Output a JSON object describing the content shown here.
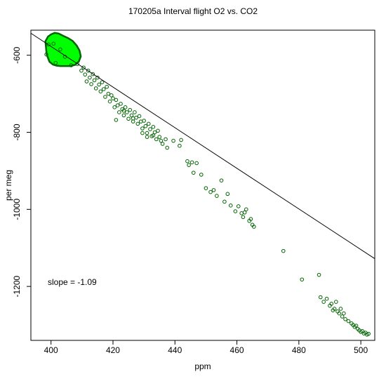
{
  "chart_data": {
    "type": "scatter",
    "title": "170205a   Interval flight O2 vs. CO2",
    "xlabel": "ppm",
    "ylabel": "per meg",
    "xlim": [
      393.5,
      504.5
    ],
    "ylim": [
      -1340,
      -535
    ],
    "xticks": [
      400,
      420,
      440,
      460,
      480,
      500
    ],
    "yticks": [
      -600,
      -800,
      -1000,
      -1200
    ],
    "grid": false,
    "point_color": "#006400",
    "dense_fill_color": "#00ff00",
    "annotation": "slope =  -1.09",
    "fit_line": {
      "x": [
        393.5,
        504.5
      ],
      "y": [
        -543,
        -1128
      ]
    },
    "dense_cluster": {
      "x": [
        398.2,
        399.0,
        400.0,
        401.2,
        402.5,
        404.0,
        405.6,
        407.0,
        408.3,
        409.2,
        409.6,
        409.0,
        407.8,
        406.2,
        404.6,
        403.0,
        401.8,
        400.6,
        399.5,
        398.6
      ],
      "y": [
        -564,
        -552,
        -546,
        -542,
        -544,
        -550,
        -556,
        -563,
        -575,
        -588,
        -603,
        -616,
        -625,
        -628,
        -628,
        -628,
        -627,
        -624,
        -617,
        -598
      ]
    },
    "points": {
      "x": [
        398.5,
        399.2,
        400.8,
        401.5,
        403.0,
        404.5,
        406.5,
        408.5,
        409.8,
        410.5,
        411.0,
        411.5,
        412.0,
        412.5,
        413.0,
        413.5,
        414.0,
        414.5,
        415.0,
        415.5,
        416.0,
        416.5,
        417.0,
        417.5,
        418.0,
        418.5,
        419.0,
        419.5,
        420.0,
        420.5,
        421.0,
        421.5,
        422.0,
        422.5,
        423.0,
        423.5,
        424.0,
        424.5,
        425.0,
        425.5,
        426.0,
        426.5,
        427.0,
        427.5,
        428.0,
        428.5,
        429.0,
        429.5,
        430.0,
        430.5,
        431.0,
        431.5,
        432.0,
        432.5,
        433.0,
        433.5,
        434.0,
        434.5,
        435.0,
        436.0,
        437.0,
        439.5,
        441.5,
        442.0,
        444.0,
        444.5,
        445.5,
        446.0,
        447.0,
        448.5,
        450.0,
        451.5,
        452.5,
        453.5,
        455.0,
        456.0,
        457.0,
        458.0,
        459.5,
        460.5,
        461.5,
        462.0,
        462.5,
        463.0,
        464.0,
        464.5,
        465.0,
        465.5,
        475.0,
        481.0,
        486.5,
        487.0,
        488.0,
        489.0,
        490.0,
        490.5,
        491.0,
        491.5,
        492.0,
        492.5,
        493.0,
        493.5,
        494.0,
        494.5,
        495.0,
        496.0,
        497.0,
        497.5,
        498.0,
        498.5,
        499.0,
        499.5,
        500.0,
        500.5,
        501.0,
        501.5,
        502.0,
        502.5,
        421.0,
        423.5,
        426.5,
        429.5,
        431.0,
        433.0,
        435.5,
        437.5
      ],
      "y": [
        -598,
        -572,
        -570,
        -620,
        -585,
        -604,
        -626,
        -623,
        -640,
        -632,
        -650,
        -668,
        -640,
        -658,
        -675,
        -649,
        -665,
        -686,
        -658,
        -676,
        -694,
        -670,
        -688,
        -708,
        -682,
        -700,
        -720,
        -704,
        -712,
        -735,
        -716,
        -730,
        -748,
        -726,
        -740,
        -756,
        -735,
        -748,
        -765,
        -742,
        -756,
        -772,
        -748,
        -762,
        -778,
        -758,
        -772,
        -790,
        -770,
        -784,
        -802,
        -778,
        -792,
        -810,
        -786,
        -800,
        -818,
        -796,
        -812,
        -830,
        -818,
        -822,
        -835,
        -820,
        -875,
        -885,
        -878,
        -905,
        -880,
        -910,
        -945,
        -955,
        -950,
        -965,
        -925,
        -980,
        -960,
        -990,
        -1005,
        -992,
        -1010,
        -1020,
        -1008,
        -1000,
        -1030,
        -1025,
        -1040,
        -1045,
        -1108,
        -1182,
        -1170,
        -1228,
        -1240,
        -1232,
        -1250,
        -1245,
        -1262,
        -1258,
        -1240,
        -1265,
        -1270,
        -1258,
        -1278,
        -1270,
        -1285,
        -1290,
        -1296,
        -1300,
        -1305,
        -1302,
        -1310,
        -1314,
        -1318,
        -1316,
        -1322,
        -1320,
        -1325,
        -1323,
        -768,
        -744,
        -764,
        -802,
        -812,
        -808,
        -822,
        -840
      ]
    }
  }
}
